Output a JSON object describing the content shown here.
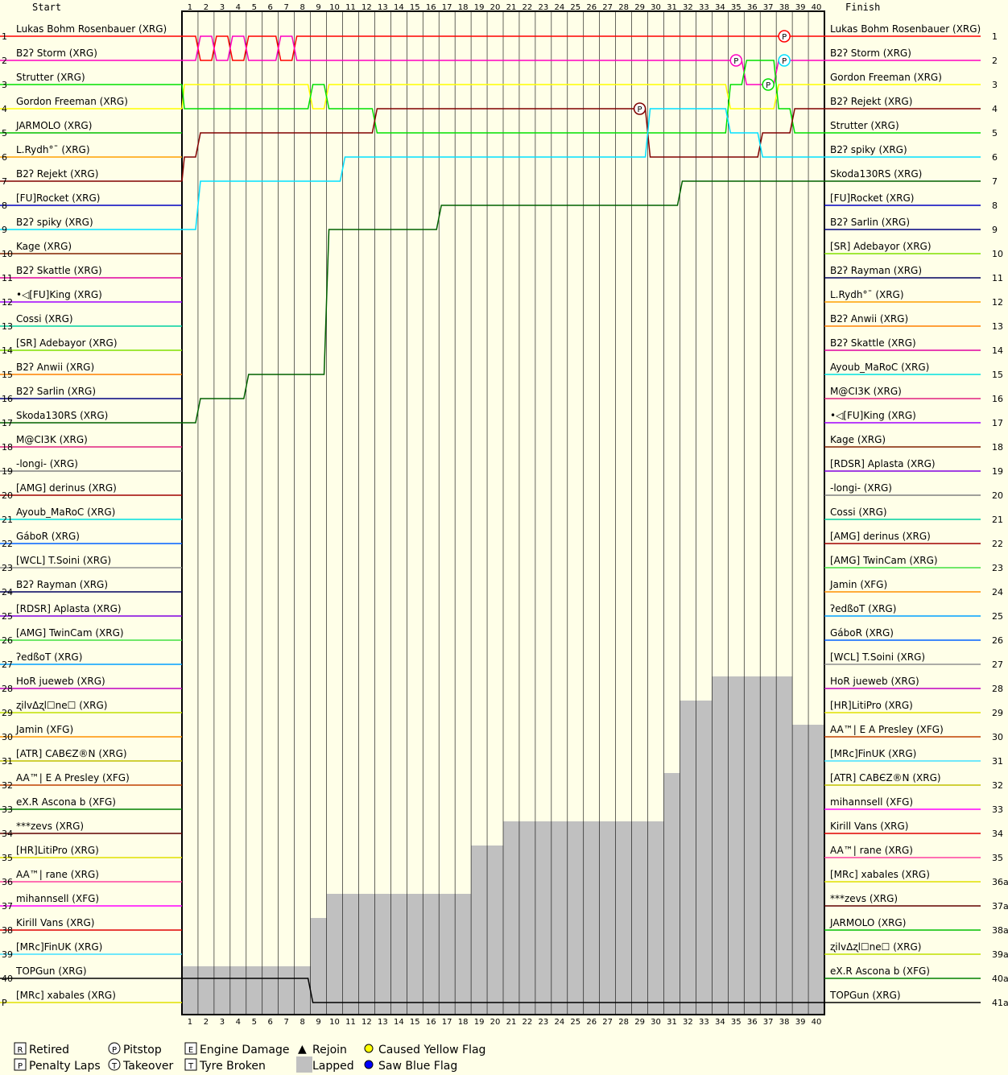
{
  "chart_data": {
    "type": "line",
    "header": {
      "start": "Start",
      "finish": "Finish"
    },
    "laps": [
      1,
      2,
      3,
      4,
      5,
      6,
      7,
      8,
      9,
      10,
      11,
      12,
      13,
      14,
      15,
      16,
      17,
      18,
      19,
      20,
      21,
      22,
      23,
      24,
      25,
      26,
      27,
      28,
      29,
      30,
      31,
      32,
      33,
      34,
      35,
      36,
      37,
      38,
      39,
      40
    ],
    "left_positions": [
      "1",
      "2",
      "3",
      "4",
      "5",
      "6",
      "7",
      "8",
      "9",
      "10",
      "11",
      "12",
      "13",
      "14",
      "15",
      "16",
      "17",
      "18",
      "19",
      "20",
      "21",
      "22",
      "23",
      "24",
      "25",
      "26",
      "27",
      "28",
      "29",
      "30",
      "31",
      "32",
      "33",
      "34",
      "35",
      "36",
      "37",
      "38",
      "39",
      "40",
      "P"
    ],
    "right_positions": [
      "1",
      "2",
      "3",
      "4",
      "5",
      "6",
      "7",
      "8",
      "9",
      "10",
      "11",
      "12",
      "13",
      "14",
      "15",
      "16",
      "17",
      "18",
      "19",
      "20",
      "21",
      "22",
      "23",
      "24",
      "25",
      "26",
      "27",
      "28",
      "29",
      "30",
      "31",
      "32",
      "33",
      "34",
      "35",
      "36a",
      "37a",
      "38a",
      "39a",
      "40a",
      "41a"
    ],
    "start_grid": [
      {
        "name": "Lukas Bohm Rosenbauer (XRG)",
        "color": "#ff0000"
      },
      {
        "name": "B2ʔ Storm (XRG)",
        "color": "#ff00c0"
      },
      {
        "name": "Strutter (XRG)",
        "color": "#00e000"
      },
      {
        "name": "Gordon Freeman (XRG)",
        "color": "#ffff00"
      },
      {
        "name": "JARMOLO (XRG)",
        "color": "#00c000"
      },
      {
        "name": "L.Rydh°¯ (XRG)",
        "color": "#ffa000"
      },
      {
        "name": "B2ʔ Rejekt (XRG)",
        "color": "#800000"
      },
      {
        "name": "[FU]Rocket (XRG)",
        "color": "#0000c0"
      },
      {
        "name": "B2ʔ spiky (XRG)",
        "color": "#00e0ff"
      },
      {
        "name": "Kage (XRG)",
        "color": "#802000"
      },
      {
        "name": "B2ʔ Skattle (XRG)",
        "color": "#e000a0"
      },
      {
        "name": "•◁[FU]King (XRG)",
        "color": "#a000ff"
      },
      {
        "name": "Cossi (XRG)",
        "color": "#00d0a0"
      },
      {
        "name": "[SR] Adebayor (XRG)",
        "color": "#80e000"
      },
      {
        "name": "B2ʔ Anwii (XRG)",
        "color": "#ff8000"
      },
      {
        "name": "B2ʔ Sarlin (XRG)",
        "color": "#000080"
      },
      {
        "name": "Skoda130RS (XRG)",
        "color": "#006000"
      },
      {
        "name": "M@CI3K (XRG)",
        "color": "#e02080"
      },
      {
        "name": "-longi- (XRG)",
        "color": "#808080"
      },
      {
        "name": "[AMG] derinus (XRG)",
        "color": "#a00000"
      },
      {
        "name": "Ayoub_MaRoC (XRG)",
        "color": "#00e0e0"
      },
      {
        "name": "GáboR (XRG)",
        "color": "#0060ff"
      },
      {
        "name": "[WCL] T.Soini (XRG)",
        "color": "#909090"
      },
      {
        "name": "B2ʔ Rayman (XRG)",
        "color": "#000060"
      },
      {
        "name": "[RDSR] Aplasta (XRG)",
        "color": "#8000e0"
      },
      {
        "name": "[AMG] TwinCam (XRG)",
        "color": "#40e040"
      },
      {
        "name": "ʔedßoT (XRG)",
        "color": "#00a0ff"
      },
      {
        "name": "HoR jueweb (XRG)",
        "color": "#c000c0"
      },
      {
        "name": "ʐilvΔʐl☐ne☐ (XRG)",
        "color": "#c0e000"
      },
      {
        "name": "Jamin (XFG)",
        "color": "#ff9000"
      },
      {
        "name": "[ATR] CABЄZ®N (XRG)",
        "color": "#c0c000"
      },
      {
        "name": "AA™| E A Presley (XFG)",
        "color": "#c04000"
      },
      {
        "name": "eX.R Ascona b (XFG)",
        "color": "#008000"
      },
      {
        "name": "***zevs (XRG)",
        "color": "#600000"
      },
      {
        "name": "[HR]LitiPro (XRG)",
        "color": "#e0e000"
      },
      {
        "name": "AA™| rane (XRG)",
        "color": "#ff40a0"
      },
      {
        "name": "mihannsell (XFG)",
        "color": "#ff00ff"
      },
      {
        "name": "Kirill Vans (XRG)",
        "color": "#e00000"
      },
      {
        "name": "[MRc]FinUK (XRG)",
        "color": "#40e0ff"
      },
      {
        "name": "TOPGun (XRG)",
        "color": "#000000"
      },
      {
        "name": "[MRc] xabales (XRG)",
        "color": "#e0e000"
      }
    ],
    "finish_order": [
      {
        "name": "Lukas Bohm Rosenbauer (XRG)",
        "color": "#ff0000"
      },
      {
        "name": "B2ʔ Storm (XRG)",
        "color": "#ff00c0"
      },
      {
        "name": "Gordon Freeman (XRG)",
        "color": "#ffff00"
      },
      {
        "name": "B2ʔ Rejekt (XRG)",
        "color": "#800000"
      },
      {
        "name": "Strutter (XRG)",
        "color": "#00e000"
      },
      {
        "name": "B2ʔ spiky (XRG)",
        "color": "#00e0ff"
      },
      {
        "name": "Skoda130RS (XRG)",
        "color": "#006000"
      },
      {
        "name": "[FU]Rocket (XRG)",
        "color": "#0000c0"
      },
      {
        "name": "B2ʔ Sarlin (XRG)",
        "color": "#000080"
      },
      {
        "name": "[SR] Adebayor (XRG)",
        "color": "#80e000"
      },
      {
        "name": "B2ʔ Rayman (XRG)",
        "color": "#000060"
      },
      {
        "name": "L.Rydh°¯ (XRG)",
        "color": "#ffa000"
      },
      {
        "name": "B2ʔ Anwii (XRG)",
        "color": "#ff8000"
      },
      {
        "name": "B2ʔ Skattle (XRG)",
        "color": "#e000a0"
      },
      {
        "name": "Ayoub_MaRoC (XRG)",
        "color": "#00e0e0"
      },
      {
        "name": "M@CI3K (XRG)",
        "color": "#e02080"
      },
      {
        "name": "•◁[FU]King (XRG)",
        "color": "#a000ff"
      },
      {
        "name": "Kage (XRG)",
        "color": "#802000"
      },
      {
        "name": "[RDSR] Aplasta (XRG)",
        "color": "#8000e0"
      },
      {
        "name": "-longi- (XRG)",
        "color": "#808080"
      },
      {
        "name": "Cossi (XRG)",
        "color": "#00d0a0"
      },
      {
        "name": "[AMG] derinus (XRG)",
        "color": "#a00000"
      },
      {
        "name": "[AMG] TwinCam (XRG)",
        "color": "#40e040"
      },
      {
        "name": "Jamin (XFG)",
        "color": "#ff9000"
      },
      {
        "name": "ʔedßoT (XRG)",
        "color": "#00a0ff"
      },
      {
        "name": "GáboR (XRG)",
        "color": "#0060ff"
      },
      {
        "name": "[WCL] T.Soini (XRG)",
        "color": "#909090"
      },
      {
        "name": "HoR jueweb (XRG)",
        "color": "#c000c0"
      },
      {
        "name": "[HR]LitiPro (XRG)",
        "color": "#e0e000"
      },
      {
        "name": "AA™| E A Presley (XFG)",
        "color": "#c04000"
      },
      {
        "name": "[MRc]FinUK (XRG)",
        "color": "#40e0ff"
      },
      {
        "name": "[ATR] CABЄZ®N (XRG)",
        "color": "#c0c000"
      },
      {
        "name": "mihannsell (XFG)",
        "color": "#ff00ff"
      },
      {
        "name": "Kirill Vans (XRG)",
        "color": "#e00000"
      },
      {
        "name": "AA™| rane (XRG)",
        "color": "#ff40a0"
      },
      {
        "name": "[MRc] xabales (XRG)",
        "color": "#e0e000"
      },
      {
        "name": "***zevs (XRG)",
        "color": "#600000"
      },
      {
        "name": "JARMOLO (XRG)",
        "color": "#00c000"
      },
      {
        "name": "ʐilvΔʐl☐ne☐ (XRG)",
        "color": "#c0e000"
      },
      {
        "name": "eX.R Ascona b (XFG)",
        "color": "#008000"
      },
      {
        "name": "TOPGun (XRG)",
        "color": "#000000"
      }
    ],
    "traces": [
      {
        "driver": "Lukas Bohm Rosenbauer (XRG)",
        "positions": [
          1,
          2,
          1,
          2,
          1,
          1,
          2,
          1,
          1,
          1,
          1,
          1,
          1,
          1,
          1,
          1,
          1,
          1,
          1,
          1,
          1,
          1,
          1,
          1,
          1,
          1,
          1,
          1,
          1,
          1,
          1,
          1,
          1,
          1,
          1,
          1,
          1,
          1,
          1,
          1
        ]
      },
      {
        "driver": "B2ʔ Storm (XRG)",
        "positions": [
          2,
          1,
          2,
          1,
          2,
          2,
          1,
          2,
          2,
          2,
          2,
          2,
          2,
          2,
          2,
          2,
          2,
          2,
          2,
          2,
          2,
          2,
          2,
          2,
          2,
          2,
          2,
          2,
          2,
          2,
          2,
          2,
          2,
          2,
          2,
          3,
          3,
          2,
          2,
          2
        ]
      },
      {
        "driver": "Gordon Freeman (XRG)",
        "positions": [
          3,
          3,
          3,
          3,
          3,
          3,
          3,
          3,
          4,
          3,
          3,
          3,
          3,
          3,
          3,
          3,
          3,
          3,
          3,
          3,
          3,
          3,
          3,
          3,
          3,
          3,
          3,
          3,
          3,
          3,
          3,
          3,
          3,
          3,
          4,
          4,
          4,
          3,
          3,
          3
        ]
      },
      {
        "driver": "Strutter (XRG)",
        "positions": [
          4,
          4,
          4,
          4,
          4,
          4,
          4,
          4,
          3,
          4,
          4,
          4,
          5,
          5,
          5,
          5,
          5,
          5,
          5,
          5,
          5,
          5,
          5,
          5,
          5,
          5,
          5,
          5,
          5,
          5,
          5,
          5,
          5,
          5,
          3,
          2,
          2,
          4,
          5,
          5
        ]
      },
      {
        "driver": "B2ʔ Rejekt (XRG)",
        "positions": [
          6,
          5,
          5,
          5,
          5,
          5,
          5,
          5,
          5,
          5,
          5,
          5,
          4,
          4,
          4,
          4,
          4,
          4,
          4,
          4,
          4,
          4,
          4,
          4,
          4,
          4,
          4,
          4,
          4,
          6,
          6,
          6,
          6,
          6,
          6,
          6,
          5,
          5,
          4,
          4
        ]
      },
      {
        "driver": "B2ʔ spiky (XRG)",
        "positions": [
          9,
          7,
          7,
          7,
          7,
          7,
          7,
          7,
          7,
          7,
          6,
          6,
          6,
          6,
          6,
          6,
          6,
          6,
          6,
          6,
          6,
          6,
          6,
          6,
          6,
          6,
          6,
          6,
          6,
          4,
          4,
          4,
          4,
          4,
          5,
          5,
          6,
          6,
          6,
          6
        ]
      },
      {
        "driver": "Skoda130RS (XRG)",
        "positions": [
          17,
          16,
          16,
          16,
          15,
          15,
          15,
          15,
          15,
          9,
          9,
          9,
          9,
          9,
          9,
          9,
          8,
          8,
          8,
          8,
          8,
          8,
          8,
          8,
          8,
          8,
          8,
          8,
          8,
          8,
          8,
          7,
          7,
          7,
          7,
          7,
          7,
          7,
          7,
          7
        ]
      },
      {
        "driver": "TOPGun (XRG)",
        "positions": [
          40,
          40,
          40,
          40,
          40,
          40,
          40,
          40,
          41,
          41,
          41,
          41,
          41,
          41,
          41,
          41,
          41,
          41,
          41,
          41,
          41,
          41,
          41,
          41,
          41,
          41,
          41,
          41,
          41,
          41,
          41,
          41,
          41,
          41,
          41,
          41,
          41,
          41,
          41,
          41
        ]
      }
    ],
    "pit_markers": [
      {
        "driver": "Lukas Bohm Rosenbauer (XRG)",
        "lap": 38,
        "pos": 1
      },
      {
        "driver": "B2ʔ Storm (XRG)",
        "lap": 35,
        "pos": 2
      },
      {
        "driver": "B2ʔ spiky (XRG)",
        "lap": 38,
        "pos": 2
      },
      {
        "driver": "B2ʔ Rejekt (XRG)",
        "lap": 29,
        "pos": 4
      },
      {
        "driver": "Strutter (XRG)",
        "lap": 37,
        "pos": 3
      }
    ],
    "lapped_band": [
      {
        "lap": 1,
        "from": 40
      },
      {
        "lap": 9,
        "from": 38
      },
      {
        "lap": 10,
        "from": 37
      },
      {
        "lap": 19,
        "from": 35
      },
      {
        "lap": 21,
        "from": 34
      },
      {
        "lap": 31,
        "from": 32
      },
      {
        "lap": 32,
        "from": 29
      },
      {
        "lap": 34,
        "from": 28
      },
      {
        "lap": 38,
        "from": 30
      },
      {
        "lap": 39,
        "from": 30
      }
    ],
    "legend": [
      {
        "icon": "R",
        "label": "Retired"
      },
      {
        "icon": "P",
        "label": "Penalty Laps"
      },
      {
        "icon": "P",
        "label": "Pitstop"
      },
      {
        "icon": "T",
        "label": "Takeover"
      },
      {
        "icon": "E",
        "label": "Engine Damage"
      },
      {
        "icon": "T",
        "label": "Tyre Broken"
      },
      {
        "icon": "▲",
        "label": "Rejoin"
      },
      {
        "icon": "■",
        "label": "Lapped"
      },
      {
        "icon": "●",
        "label": "Caused Yellow Flag"
      },
      {
        "icon": "●",
        "label": "Saw Blue Flag"
      }
    ]
  }
}
